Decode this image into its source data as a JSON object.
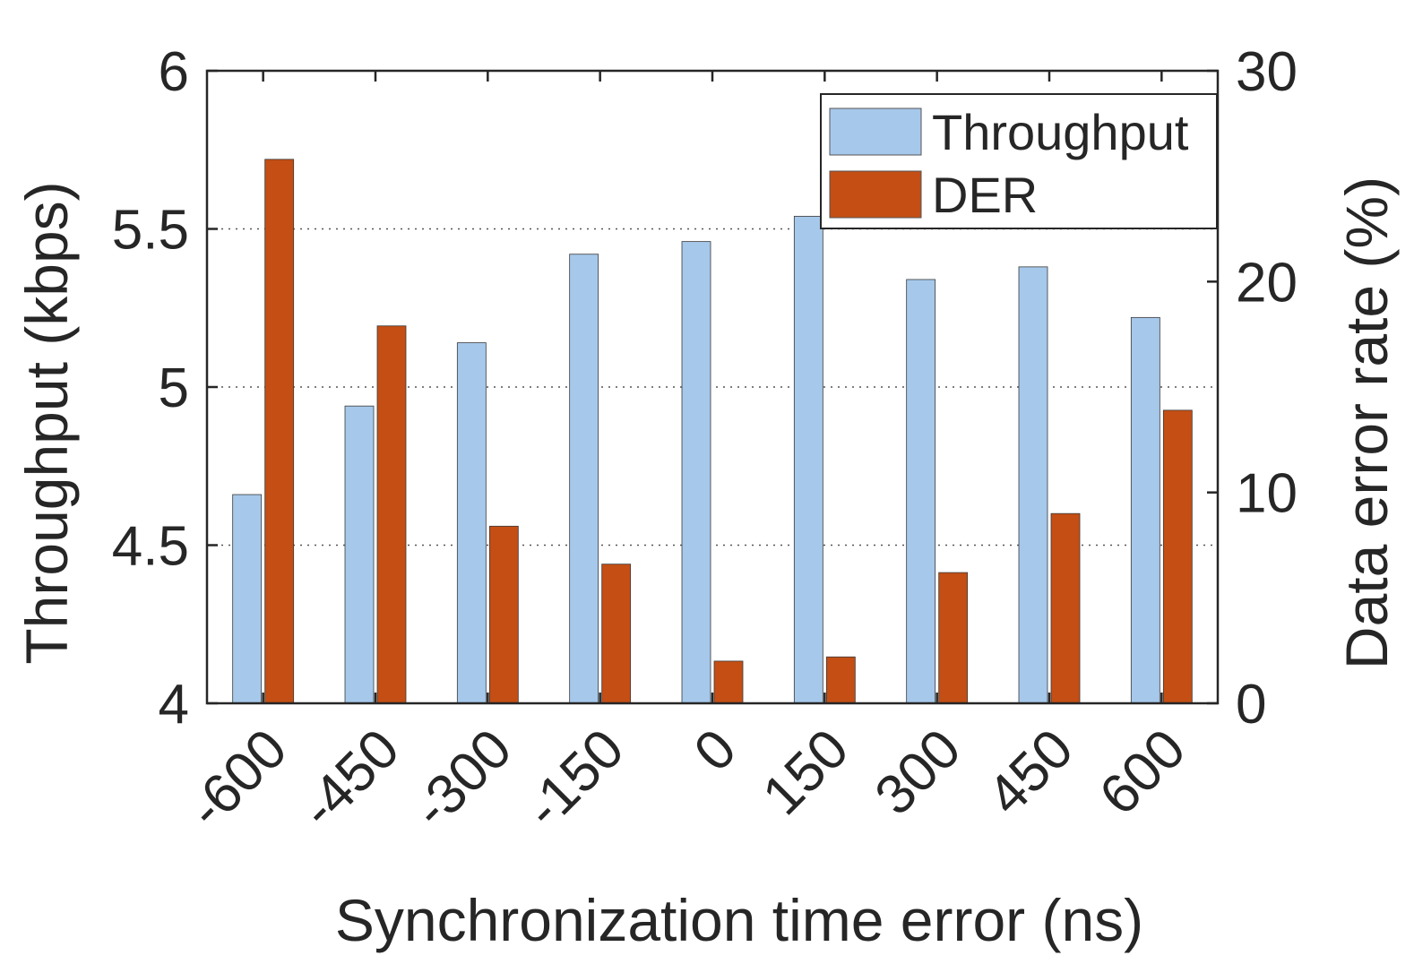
{
  "chart_data": {
    "type": "bar",
    "xlabel": "Synchronization time error (ns)",
    "categories": [
      "-600",
      "-450",
      "-300",
      "-150",
      "0",
      "150",
      "300",
      "450",
      "600"
    ],
    "y_left": {
      "label": "Throughput (kbps)",
      "lim": [
        4,
        6
      ],
      "ticks": [
        4,
        4.5,
        5,
        5.5,
        6
      ],
      "tick_labels": [
        "4",
        "4.5",
        "5",
        "5.5",
        "6"
      ]
    },
    "y_right": {
      "label": "Data error rate (%)",
      "lim": [
        0,
        30
      ],
      "ticks": [
        0,
        10,
        20,
        30
      ],
      "tick_labels": [
        "0",
        "10",
        "20",
        "30"
      ]
    },
    "series": [
      {
        "name": "Throughput",
        "axis": "left",
        "color": "#a6c8ea",
        "values": [
          4.66,
          4.94,
          5.14,
          5.42,
          5.46,
          5.54,
          5.34,
          5.38,
          5.22
        ]
      },
      {
        "name": "DER",
        "axis": "right",
        "color": "#c44e14",
        "values": [
          25.8,
          17.9,
          8.4,
          6.6,
          2.0,
          2.2,
          6.2,
          9.0,
          13.9
        ]
      }
    ],
    "grid": "horizontal dotted at left-axis ticks",
    "legend": "top-right"
  }
}
